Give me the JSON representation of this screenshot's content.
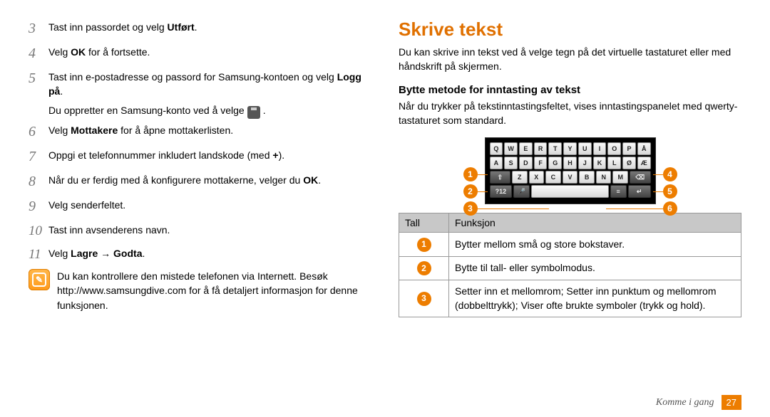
{
  "left": {
    "items": [
      {
        "n": "3",
        "text_pre": "Tast inn passordet og velg ",
        "bold": "Utført",
        "text_post": "."
      },
      {
        "n": "4",
        "text_pre": "Velg ",
        "bold": "OK",
        "text_post": " for å fortsette."
      },
      {
        "n": "5",
        "text_pre": "Tast inn e-postadresse og passord for Samsung-kontoen og velg ",
        "bold": "Logg på",
        "text_post": "."
      },
      {
        "n": "",
        "indent": true,
        "text": "Du oppretter en Samsung-konto ved å velge",
        "has_icon": true,
        "post": " ."
      },
      {
        "n": "6",
        "text_pre": "Velg ",
        "bold": "Mottakere",
        "text_post": " for å åpne mottakerlisten."
      },
      {
        "n": "7",
        "text_pre": "Oppgi et telefonnummer inkludert landskode (med ",
        "bold": "+",
        "text_post": ")."
      },
      {
        "n": "8",
        "text_pre": "Når du er ferdig med å konfigurere mottakerne, velger du ",
        "bold": "OK",
        "text_post": "."
      },
      {
        "n": "9",
        "text_pre": "Velg senderfeltet.",
        "bold": "",
        "text_post": ""
      },
      {
        "n": "10",
        "text_pre": "Tast inn avsenderens navn.",
        "bold": "",
        "text_post": ""
      },
      {
        "n": "11",
        "text_pre": "Velg ",
        "bold": "Lagre → Godta",
        "text_post": "."
      }
    ],
    "note": "Du kan kontrollere den mistede telefonen via Internett. Besøk http://www.samsungdive.com for å få detaljert informasjon for denne funksjonen."
  },
  "right": {
    "title": "Skrive tekst",
    "intro": "Du kan skrive inn tekst ved å velge tegn på det virtuelle tastaturet eller med håndskrift på skjermen.",
    "subtitle": "Bytte metode for inntasting av tekst",
    "subpara": "Når du trykker på tekstinntastingsfeltet, vises inntastingspanelet med qwerty-tastaturet som standard.",
    "keyboard": {
      "rows": [
        [
          "Q",
          "W",
          "E",
          "R",
          "T",
          "Y",
          "U",
          "I",
          "O",
          "P",
          "Å"
        ],
        [
          "A",
          "S",
          "D",
          "F",
          "G",
          "H",
          "J",
          "K",
          "L",
          "Ø",
          "Æ"
        ]
      ],
      "row3": {
        "shift": "⇧",
        "keys": [
          "Z",
          "X",
          "C",
          "V",
          "B",
          "N",
          "M"
        ],
        "del": "⌫"
      },
      "row4": {
        "mode": "?12",
        "mic": "🎤",
        "menu": "≡",
        "go": "↵"
      }
    },
    "callouts_left": [
      "1",
      "2",
      "3"
    ],
    "callouts_right": [
      "4",
      "5",
      "6"
    ],
    "table": {
      "head": [
        "Tall",
        "Funksjon"
      ],
      "rows": [
        {
          "n": "1",
          "t": "Bytter mellom små og store bokstaver."
        },
        {
          "n": "2",
          "t": "Bytte til tall- eller symbolmodus."
        },
        {
          "n": "3",
          "t": "Setter inn et mellomrom; Setter inn punktum og mellomrom (dobbelttrykk); Viser ofte brukte symboler (trykk og hold)."
        }
      ]
    }
  },
  "footer": {
    "text": "Komme i gang",
    "page": "27"
  },
  "colors": {
    "accent": "#ed7d00"
  }
}
